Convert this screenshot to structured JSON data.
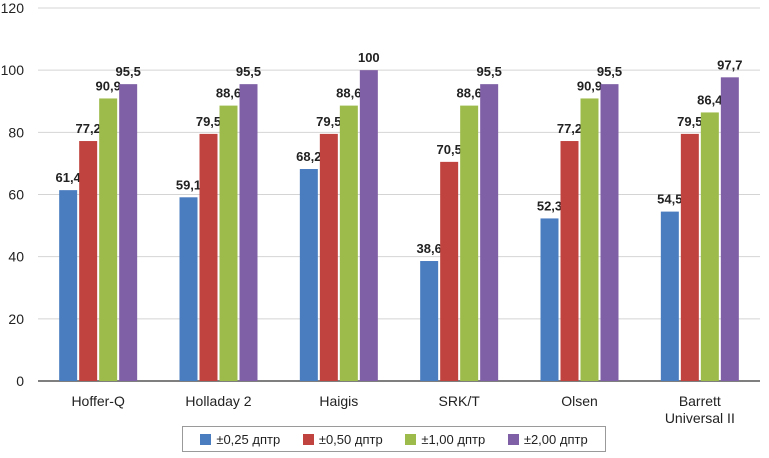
{
  "chart_data": {
    "type": "bar",
    "title": "",
    "xlabel": "",
    "ylabel": "",
    "ylim": [
      0,
      120
    ],
    "yticks": [
      0,
      20,
      40,
      60,
      80,
      100,
      120
    ],
    "grid": true,
    "legend_position": "bottom",
    "categories": [
      "Hoffer-Q",
      "Holladay 2",
      "Haigis",
      "SRK/T",
      "Olsen",
      "Barrett Universal II"
    ],
    "category_lines": [
      [
        "Hoffer-Q"
      ],
      [
        "Holladay 2"
      ],
      [
        "Haigis"
      ],
      [
        "SRK/T"
      ],
      [
        "Olsen"
      ],
      [
        "Barrett",
        "Universal II"
      ]
    ],
    "series": [
      {
        "name": "±0,25 дптр",
        "color": "#4a7cc0",
        "values": [
          61.4,
          59.1,
          68.2,
          38.6,
          52.3,
          54.5
        ],
        "labels": [
          "61,4",
          "59,1",
          "68,2",
          "38,6",
          "52,3",
          "54,5"
        ]
      },
      {
        "name": "±0,50 дптр",
        "color": "#c0433f",
        "values": [
          77.2,
          79.5,
          79.5,
          70.5,
          77.2,
          79.5
        ],
        "labels": [
          "77,2",
          "79,5",
          "79,5",
          "70,5",
          "77,2",
          "79,5"
        ]
      },
      {
        "name": "±1,00 дптр",
        "color": "#9cbb4b",
        "values": [
          90.9,
          88.6,
          88.6,
          88.6,
          90.9,
          86.4
        ],
        "labels": [
          "90,9",
          "88,6",
          "88,6",
          "88,6",
          "90,9",
          "86,4"
        ]
      },
      {
        "name": "±2,00 дптр",
        "color": "#7f5fa5",
        "values": [
          95.5,
          95.5,
          100,
          95.5,
          95.5,
          97.7
        ],
        "labels": [
          "95,5",
          "95,5",
          "100",
          "95,5",
          "95,5",
          "97,7"
        ]
      }
    ]
  }
}
